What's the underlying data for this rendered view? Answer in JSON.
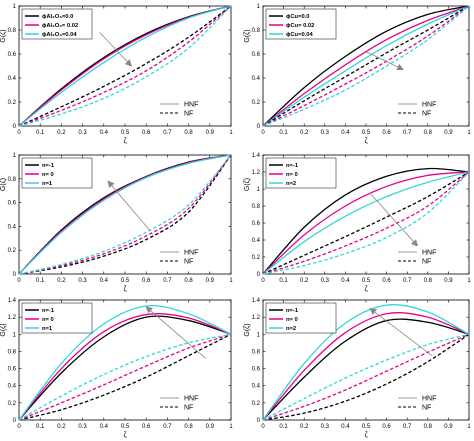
{
  "chart_data": [
    {
      "type": "line",
      "xlabel": "ζ",
      "ylabel": "G(ζ)",
      "xlim": [
        0,
        1
      ],
      "ylim": [
        0,
        1
      ],
      "xticks": [
        "0",
        "0.1",
        "0.2",
        "0.3",
        "0.4",
        "0.5",
        "0.6",
        "0.7",
        "0.8",
        "0.9",
        "1"
      ],
      "yticks": [
        "0",
        "0.2",
        "0.4",
        "0.6",
        "0.8",
        "1"
      ],
      "legend": {
        "placement": "top-left",
        "items": [
          "ϕAl₂O₃=0.0",
          "ϕAl₂O₃= 0.02",
          "ϕAl₂O₃=0.04"
        ]
      },
      "style_legend": {
        "placement": "bottom-right",
        "items": [
          "HNF",
          "NF"
        ]
      },
      "series": [
        {
          "name": "ϕAl₂O₃=0.0",
          "style": "HNF",
          "color": "#000000",
          "x": [
            0,
            0.2,
            0.4,
            0.6,
            0.8,
            1
          ],
          "y": [
            0,
            0.31,
            0.57,
            0.77,
            0.91,
            1
          ]
        },
        {
          "name": "ϕAl₂O₃= 0.02",
          "style": "HNF",
          "color": "#e6008c",
          "x": [
            0,
            0.2,
            0.4,
            0.6,
            0.8,
            1
          ],
          "y": [
            0,
            0.3,
            0.56,
            0.76,
            0.905,
            1
          ]
        },
        {
          "name": "ϕAl₂O₃=0.04",
          "style": "HNF",
          "color": "#33d6dd",
          "x": [
            0,
            0.2,
            0.4,
            0.6,
            0.8,
            1
          ],
          "y": [
            0,
            0.28,
            0.53,
            0.74,
            0.9,
            1
          ]
        },
        {
          "name": "ϕAl₂O₃=0.0",
          "style": "NF",
          "color": "#000000",
          "x": [
            0,
            0.2,
            0.4,
            0.6,
            0.8,
            1
          ],
          "y": [
            0,
            0.16,
            0.33,
            0.52,
            0.74,
            1
          ]
        },
        {
          "name": "ϕAl₂O₃= 0.02",
          "style": "NF",
          "color": "#e6008c",
          "x": [
            0,
            0.2,
            0.4,
            0.6,
            0.8,
            1
          ],
          "y": [
            0,
            0.13,
            0.28,
            0.46,
            0.7,
            1
          ]
        },
        {
          "name": "ϕAl₂O₃=0.04",
          "style": "NF",
          "color": "#33d6dd",
          "x": [
            0,
            0.2,
            0.4,
            0.6,
            0.8,
            1
          ],
          "y": [
            0,
            0.1,
            0.23,
            0.41,
            0.65,
            1
          ]
        }
      ],
      "arrow": {
        "from": [
          0.38,
          0.78
        ],
        "to": [
          0.53,
          0.5
        ]
      }
    },
    {
      "type": "line",
      "xlabel": "ζ",
      "ylabel": "G(ζ)",
      "xlim": [
        0,
        1
      ],
      "ylim": [
        0,
        1
      ],
      "xticks": [
        "0",
        "0.1",
        "0.2",
        "0.3",
        "0.4",
        "0.5",
        "0.6",
        "0.7",
        "0.8",
        "0.9",
        "1"
      ],
      "yticks": [
        "0",
        "0.2",
        "0.4",
        "0.6",
        "0.8",
        "1"
      ],
      "legend": {
        "placement": "top-left",
        "items": [
          "ϕCu=0.0",
          "ϕCu= 0.02",
          "ϕCu=0.04"
        ]
      },
      "style_legend": {
        "placement": "bottom-right",
        "items": [
          "HNF",
          "NF"
        ]
      },
      "series": [
        {
          "name": "ϕCu=0.0",
          "style": "HNF",
          "color": "#000000",
          "x": [
            0,
            0.2,
            0.4,
            0.6,
            0.8,
            1
          ],
          "y": [
            0,
            0.32,
            0.58,
            0.79,
            0.93,
            1
          ]
        },
        {
          "name": "ϕCu= 0.02",
          "style": "HNF",
          "color": "#e6008c",
          "x": [
            0,
            0.2,
            0.4,
            0.6,
            0.8,
            1
          ],
          "y": [
            0,
            0.27,
            0.51,
            0.72,
            0.88,
            1
          ]
        },
        {
          "name": "ϕCu=0.04",
          "style": "HNF",
          "color": "#33d6dd",
          "x": [
            0,
            0.2,
            0.4,
            0.6,
            0.8,
            1
          ],
          "y": [
            0,
            0.24,
            0.46,
            0.67,
            0.85,
            1
          ]
        },
        {
          "name": "ϕCu=0.0",
          "style": "NF",
          "color": "#000000",
          "x": [
            0,
            0.2,
            0.4,
            0.6,
            0.8,
            1
          ],
          "y": [
            0,
            0.21,
            0.41,
            0.61,
            0.8,
            1
          ]
        },
        {
          "name": "ϕCu= 0.02",
          "style": "NF",
          "color": "#e6008c",
          "x": [
            0,
            0.2,
            0.4,
            0.6,
            0.8,
            1
          ],
          "y": [
            0,
            0.17,
            0.35,
            0.54,
            0.75,
            1
          ]
        },
        {
          "name": "ϕCu=0.04",
          "style": "NF",
          "color": "#33d6dd",
          "x": [
            0,
            0.2,
            0.4,
            0.6,
            0.8,
            1
          ],
          "y": [
            0,
            0.14,
            0.3,
            0.5,
            0.72,
            1
          ]
        }
      ],
      "arrow": {
        "from": [
          0.5,
          0.62
        ],
        "to": [
          0.68,
          0.47
        ]
      }
    },
    {
      "type": "line",
      "xlabel": "ζ",
      "ylabel": "G(ζ)",
      "xlim": [
        0,
        1
      ],
      "ylim": [
        0,
        1
      ],
      "xticks": [
        "0",
        "0.1",
        "0.2",
        "0.3",
        "0.4",
        "0.5",
        "0.6",
        "0.7",
        "0.8",
        "0.9",
        "1"
      ],
      "yticks": [
        "0",
        "0.2",
        "0.4",
        "0.6",
        "0.8",
        "1"
      ],
      "legend": {
        "placement": "top-left",
        "items": [
          "n=-1",
          "n= 0",
          "n=1"
        ]
      },
      "style_legend": {
        "placement": "bottom-right",
        "items": [
          "HNF",
          "NF"
        ]
      },
      "series": [
        {
          "name": "n=-1",
          "style": "HNF",
          "color": "#000000",
          "x": [
            0,
            0.2,
            0.4,
            0.6,
            0.8,
            1
          ],
          "y": [
            0,
            0.37,
            0.64,
            0.82,
            0.94,
            1
          ]
        },
        {
          "name": "n= 0",
          "style": "HNF",
          "color": "#e6008c",
          "x": [
            0,
            0.2,
            0.4,
            0.6,
            0.8,
            1
          ],
          "y": [
            0,
            0.36,
            0.63,
            0.815,
            0.935,
            1
          ]
        },
        {
          "name": "n=1",
          "style": "HNF",
          "color": "#33d6dd",
          "x": [
            0,
            0.2,
            0.4,
            0.6,
            0.8,
            1
          ],
          "y": [
            0,
            0.35,
            0.62,
            0.81,
            0.93,
            1
          ]
        },
        {
          "name": "n=-1",
          "style": "NF",
          "color": "#000000",
          "x": [
            0,
            0.2,
            0.4,
            0.6,
            0.8,
            1
          ],
          "y": [
            0,
            0.06,
            0.15,
            0.29,
            0.52,
            1
          ]
        },
        {
          "name": "n= 0",
          "style": "NF",
          "color": "#e6008c",
          "x": [
            0,
            0.2,
            0.4,
            0.6,
            0.8,
            1
          ],
          "y": [
            0,
            0.07,
            0.17,
            0.32,
            0.55,
            1
          ]
        },
        {
          "name": "n=1",
          "style": "NF",
          "color": "#33d6dd",
          "x": [
            0,
            0.2,
            0.4,
            0.6,
            0.8,
            1
          ],
          "y": [
            0,
            0.08,
            0.19,
            0.35,
            0.58,
            1
          ]
        }
      ],
      "arrow": {
        "from": [
          0.62,
          0.36
        ],
        "to": [
          0.42,
          0.78
        ]
      }
    },
    {
      "type": "line",
      "xlabel": "ζ",
      "ylabel": "G(ζ)",
      "xlim": [
        0,
        1
      ],
      "ylim": [
        0,
        1.4
      ],
      "xticks": [
        "0",
        "0.1",
        "0.2",
        "0.3",
        "0.4",
        "0.5",
        "0.6",
        "0.7",
        "0.8",
        "0.9",
        "1"
      ],
      "yticks": [
        "0",
        "0.2",
        "0.4",
        "0.6",
        "0.8",
        "1",
        "1.2",
        "1.4"
      ],
      "legend": {
        "placement": "top-left",
        "items": [
          "n=-1",
          "n= 0",
          "n=2"
        ]
      },
      "style_legend": {
        "placement": "bottom-right",
        "items": [
          "HNF",
          "NF"
        ]
      },
      "series": [
        {
          "name": "n=-1",
          "style": "HNF",
          "color": "#000000",
          "x": [
            0,
            0.2,
            0.4,
            0.6,
            0.8,
            1
          ],
          "y": [
            0,
            0.55,
            0.93,
            1.15,
            1.24,
            1.2
          ]
        },
        {
          "name": "n= 0",
          "style": "HNF",
          "color": "#e6008c",
          "x": [
            0,
            0.2,
            0.4,
            0.6,
            0.8,
            1
          ],
          "y": [
            0,
            0.46,
            0.8,
            1.03,
            1.16,
            1.2
          ]
        },
        {
          "name": "n=2",
          "style": "HNF",
          "color": "#33d6dd",
          "x": [
            0,
            0.2,
            0.4,
            0.6,
            0.8,
            1
          ],
          "y": [
            0,
            0.38,
            0.68,
            0.91,
            1.08,
            1.2
          ]
        },
        {
          "name": "n=-1",
          "style": "NF",
          "color": "#000000",
          "x": [
            0,
            0.2,
            0.4,
            0.6,
            0.8,
            1
          ],
          "y": [
            0,
            0.22,
            0.44,
            0.67,
            0.91,
            1.2
          ]
        },
        {
          "name": "n= 0",
          "style": "NF",
          "color": "#e6008c",
          "x": [
            0,
            0.2,
            0.4,
            0.6,
            0.8,
            1
          ],
          "y": [
            0,
            0.15,
            0.33,
            0.54,
            0.8,
            1.2
          ]
        },
        {
          "name": "n=2",
          "style": "NF",
          "color": "#33d6dd",
          "x": [
            0,
            0.2,
            0.4,
            0.6,
            0.8,
            1
          ],
          "y": [
            0,
            0.1,
            0.24,
            0.43,
            0.72,
            1.2
          ]
        }
      ],
      "arrow": {
        "from": [
          0.52,
          0.95
        ],
        "to": [
          0.75,
          0.33
        ]
      }
    },
    {
      "type": "line",
      "xlabel": "ζ",
      "ylabel": "G(ζ)",
      "xlim": [
        0,
        1
      ],
      "ylim": [
        0,
        1.4
      ],
      "xticks": [
        "0",
        "0.1",
        "0.2",
        "0.3",
        "0.4",
        "0.5",
        "0.6",
        "0.7",
        "0.8",
        "0.9",
        "1"
      ],
      "yticks": [
        "0",
        "0.2",
        "0.4",
        "0.6",
        "0.8",
        "1",
        "1.2",
        "1.4"
      ],
      "legend": {
        "placement": "top-left",
        "items": [
          "n=-1",
          "n= 0",
          "n=1"
        ]
      },
      "style_legend": {
        "placement": "bottom-right",
        "items": [
          "HNF",
          "NF"
        ]
      },
      "series": [
        {
          "name": "n=-1",
          "style": "HNF",
          "color": "#000000",
          "x": [
            0,
            0.2,
            0.4,
            0.6,
            0.8,
            1
          ],
          "y": [
            0,
            0.55,
            0.97,
            1.2,
            1.16,
            1.0
          ]
        },
        {
          "name": "n= 0",
          "style": "HNF",
          "color": "#e6008c",
          "x": [
            0,
            0.2,
            0.4,
            0.6,
            0.8,
            1
          ],
          "y": [
            0,
            0.6,
            1.03,
            1.23,
            1.19,
            1.0
          ]
        },
        {
          "name": "n=1",
          "style": "HNF",
          "color": "#33d6dd",
          "x": [
            0,
            0.2,
            0.4,
            0.6,
            0.8,
            1
          ],
          "y": [
            0,
            0.66,
            1.12,
            1.33,
            1.24,
            1.0
          ]
        },
        {
          "name": "n=-1",
          "style": "NF",
          "color": "#000000",
          "x": [
            0,
            0.2,
            0.4,
            0.6,
            0.8,
            1
          ],
          "y": [
            0,
            0.12,
            0.29,
            0.5,
            0.75,
            1.0
          ]
        },
        {
          "name": "n= 0",
          "style": "NF",
          "color": "#e6008c",
          "x": [
            0,
            0.2,
            0.4,
            0.6,
            0.8,
            1
          ],
          "y": [
            0,
            0.2,
            0.41,
            0.63,
            0.84,
            1.0
          ]
        },
        {
          "name": "n=1",
          "style": "NF",
          "color": "#33d6dd",
          "x": [
            0,
            0.2,
            0.4,
            0.6,
            0.8,
            1
          ],
          "y": [
            0,
            0.28,
            0.53,
            0.74,
            0.9,
            1.0
          ]
        }
      ],
      "arrow": {
        "from": [
          0.88,
          0.72
        ],
        "to": [
          0.6,
          1.32
        ]
      }
    },
    {
      "type": "line",
      "xlabel": "ζ",
      "ylabel": "G(ζ)",
      "xlim": [
        0,
        1
      ],
      "ylim": [
        0,
        1.4
      ],
      "xticks": [
        "0",
        "0.1",
        "0.2",
        "0.3",
        "0.4",
        "0.5",
        "0.6",
        "0.7",
        "0.8",
        "0.9",
        "1"
      ],
      "yticks": [
        "0",
        "0.2",
        "0.4",
        "0.6",
        "0.8",
        "1",
        "1.2",
        "1.4"
      ],
      "legend": {
        "placement": "top-left",
        "items": [
          "n=-1",
          "n= 0",
          "n=2"
        ]
      },
      "style_legend": {
        "placement": "bottom-right",
        "items": [
          "HNF",
          "NF"
        ]
      },
      "series": [
        {
          "name": "n=-1",
          "style": "HNF",
          "color": "#000000",
          "x": [
            0,
            0.2,
            0.4,
            0.6,
            0.8,
            1
          ],
          "y": [
            0,
            0.5,
            0.92,
            1.16,
            1.14,
            1.0
          ]
        },
        {
          "name": "n= 0",
          "style": "HNF",
          "color": "#e6008c",
          "x": [
            0,
            0.2,
            0.4,
            0.6,
            0.8,
            1
          ],
          "y": [
            0,
            0.58,
            1.02,
            1.24,
            1.2,
            1.0
          ]
        },
        {
          "name": "n=2",
          "style": "HNF",
          "color": "#33d6dd",
          "x": [
            0,
            0.2,
            0.4,
            0.6,
            0.8,
            1
          ],
          "y": [
            0,
            0.66,
            1.13,
            1.34,
            1.26,
            1.0
          ]
        },
        {
          "name": "n=-1",
          "style": "NF",
          "color": "#000000",
          "x": [
            0,
            0.2,
            0.4,
            0.6,
            0.8,
            1
          ],
          "y": [
            0,
            0.08,
            0.22,
            0.42,
            0.68,
            1.0
          ]
        },
        {
          "name": "n= 0",
          "style": "NF",
          "color": "#e6008c",
          "x": [
            0,
            0.2,
            0.4,
            0.6,
            0.8,
            1
          ],
          "y": [
            0,
            0.16,
            0.35,
            0.57,
            0.79,
            1.0
          ]
        },
        {
          "name": "n=2",
          "style": "NF",
          "color": "#33d6dd",
          "x": [
            0,
            0.2,
            0.4,
            0.6,
            0.8,
            1
          ],
          "y": [
            0,
            0.25,
            0.49,
            0.7,
            0.88,
            1.0
          ]
        }
      ],
      "arrow": {
        "from": [
          0.82,
          0.75
        ],
        "to": [
          0.52,
          1.3
        ]
      }
    }
  ]
}
